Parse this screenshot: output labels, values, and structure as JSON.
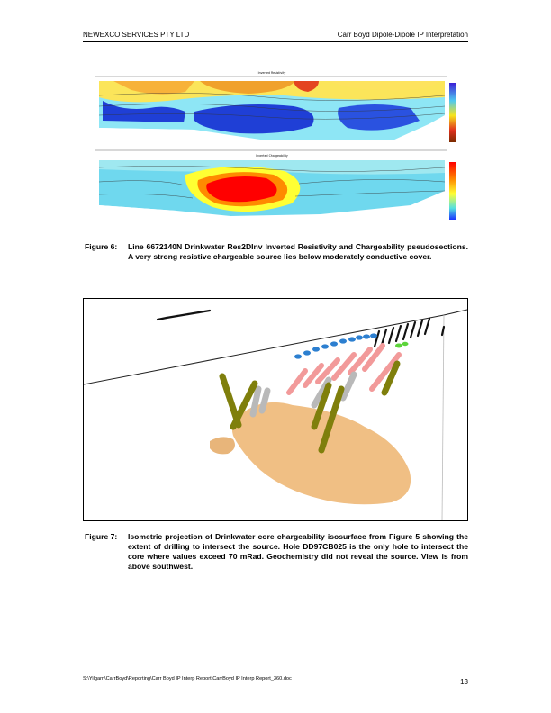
{
  "header": {
    "left": "NEWEXCO SERVICES PTY LTD",
    "right": "Carr Boyd Dipole-Dipole IP Interpretation"
  },
  "figure6": {
    "top_panel_title": "Inverted Resistivity",
    "bottom_panel_title": "Inverted Chargeability",
    "colors": {
      "resistivity_scale": [
        "#7b2b00",
        "#e0301e",
        "#f7d21c",
        "#7fd6ef",
        "#1f3fd6"
      ],
      "chargeability_scale": [
        "#ff0000",
        "#ff8a00",
        "#ffff33",
        "#55e0e0",
        "#1a33ff"
      ]
    },
    "caption_number": "Figure 6:",
    "caption_text": "Line 6672140N Drinkwater Res2DInv Inverted Resistivity and Chargeability pseudosections. A very strong resistive chargeable source lies below moderately conductive cover."
  },
  "figure7": {
    "caption_number": "Figure 7:",
    "caption_text": "Isometric projection of Drinkwater core chargeability isosurface from Figure 5 showing the extent of drilling to intersect the source. Hole DD97CB025 is the only hole to intersect the core where values exceed 70 mRad. Geochemistry did not reveal the source. View is from above southwest.",
    "colors": {
      "isosurface": "#f0bf84",
      "drillhole_olive": "#7f7f0c",
      "drillhole_grey": "#b9b9b9",
      "drillhole_pink": "#f29a9a",
      "drillhole_blue": "#2c7fd0",
      "drillhole_green": "#5cd43a"
    }
  },
  "footer": {
    "path": "S:\\Yilgarn\\CarrBoyd\\Reporting\\Carr Boyd IP Interp Report\\CarrBoyd IP Interp Report_360.doc",
    "page": "13"
  }
}
